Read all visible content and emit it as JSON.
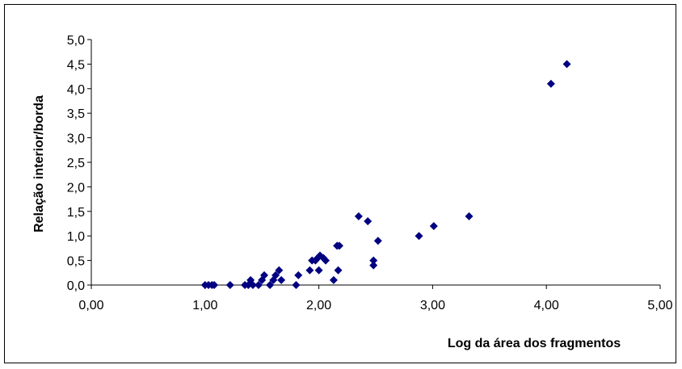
{
  "chart_data": {
    "type": "scatter",
    "title": "",
    "xlabel": "Log da área dos fragmentos",
    "ylabel": "Relação interior/borda",
    "xlim": [
      0,
      5
    ],
    "ylim": [
      0,
      5
    ],
    "x_ticks": [
      "0,00",
      "1,00",
      "2,00",
      "3,00",
      "4,00",
      "5,00"
    ],
    "y_ticks": [
      "0,0",
      "0,5",
      "1,0",
      "1,5",
      "2,0",
      "2,5",
      "3,0",
      "3,5",
      "4,0",
      "4,5",
      "5,0"
    ],
    "grid": false,
    "legend": "none",
    "marker": "diamond",
    "marker_color": "#000080",
    "points": [
      [
        1.0,
        0.0
      ],
      [
        1.03,
        0.0
      ],
      [
        1.06,
        0.0
      ],
      [
        1.08,
        0.0
      ],
      [
        1.22,
        0.0
      ],
      [
        1.35,
        0.0
      ],
      [
        1.38,
        0.0
      ],
      [
        1.4,
        0.1
      ],
      [
        1.42,
        0.0
      ],
      [
        1.47,
        0.0
      ],
      [
        1.5,
        0.1
      ],
      [
        1.52,
        0.2
      ],
      [
        1.57,
        0.0
      ],
      [
        1.6,
        0.1
      ],
      [
        1.62,
        0.2
      ],
      [
        1.65,
        0.3
      ],
      [
        1.67,
        0.1
      ],
      [
        1.8,
        0.0
      ],
      [
        1.82,
        0.2
      ],
      [
        1.92,
        0.3
      ],
      [
        1.94,
        0.5
      ],
      [
        1.97,
        0.5
      ],
      [
        1.99,
        0.55
      ],
      [
        2.0,
        0.3
      ],
      [
        2.01,
        0.6
      ],
      [
        2.04,
        0.55
      ],
      [
        2.06,
        0.5
      ],
      [
        2.13,
        0.1
      ],
      [
        2.16,
        0.8
      ],
      [
        2.18,
        0.8
      ],
      [
        2.17,
        0.3
      ],
      [
        2.35,
        1.4
      ],
      [
        2.43,
        1.3
      ],
      [
        2.48,
        0.4
      ],
      [
        2.48,
        0.5
      ],
      [
        2.52,
        0.9
      ],
      [
        2.88,
        1.0
      ],
      [
        3.01,
        1.2
      ],
      [
        3.32,
        1.4
      ],
      [
        4.04,
        4.1
      ],
      [
        4.18,
        4.5
      ]
    ]
  }
}
